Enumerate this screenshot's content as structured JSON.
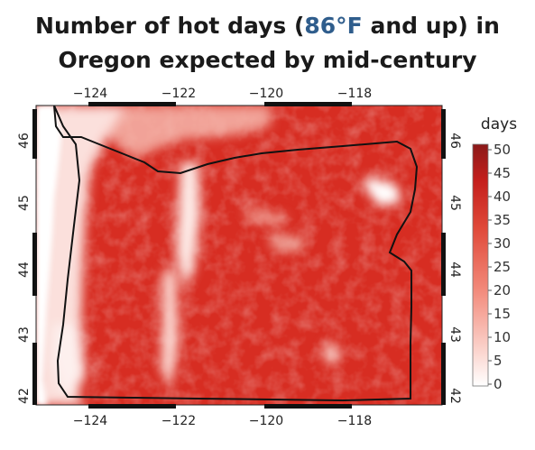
{
  "title": {
    "line1_pre": "Number of hot days (",
    "line1_highlight": "86°F",
    "line1_post": " and up) in",
    "line2": "Oregon expected by mid-century",
    "highlight_color": "#2f5d8c"
  },
  "map": {
    "lon_ticks_top": [
      "−124",
      "−122",
      "−120",
      "−118"
    ],
    "lon_ticks_bottom": [
      "−124",
      "−122",
      "−120",
      "−118"
    ],
    "lat_ticks_left": [
      "46",
      "45",
      "44",
      "43",
      "42"
    ],
    "lat_ticks_right": [
      "46",
      "45",
      "44",
      "43",
      "42"
    ],
    "lon_range": [
      -125,
      -116.2
    ],
    "lat_range": [
      41.8,
      46.4
    ]
  },
  "colorbar": {
    "label": "days",
    "ticks": [
      "50",
      "45",
      "40",
      "35",
      "30",
      "25",
      "20",
      "15",
      "10",
      "5",
      "0"
    ],
    "range": [
      0,
      50
    ],
    "color_low": "#ffffff",
    "color_high": "#8b1a1a"
  }
}
